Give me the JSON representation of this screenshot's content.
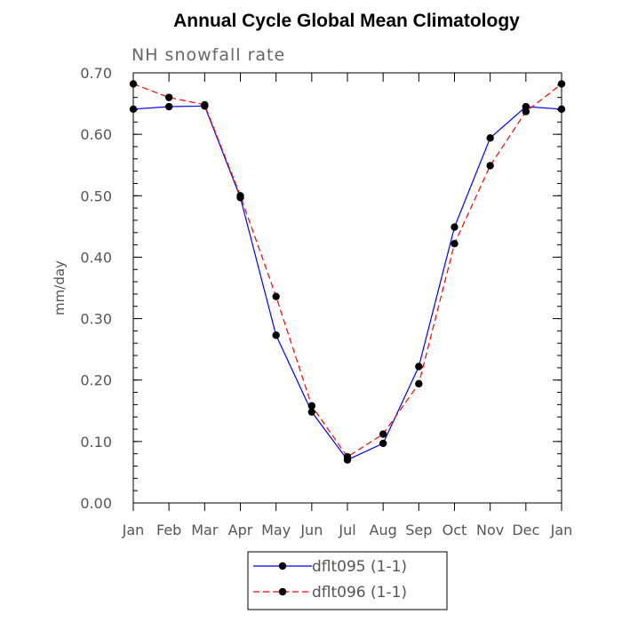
{
  "chart_data": {
    "type": "line",
    "title": "Annual Cycle Global Mean Climatology",
    "subtitle": "NH snowfall rate",
    "xlabel": "",
    "ylabel": "mm/day",
    "categories": [
      "Jan",
      "Feb",
      "Mar",
      "Apr",
      "May",
      "Jun",
      "Jul",
      "Aug",
      "Sep",
      "Oct",
      "Nov",
      "Dec",
      "Jan"
    ],
    "ylim": [
      0.0,
      0.7
    ],
    "yticks": [
      "0.00",
      "0.10",
      "0.20",
      "0.30",
      "0.40",
      "0.50",
      "0.60",
      "0.70"
    ],
    "grid": false,
    "legend_position": "bottom-center",
    "series": [
      {
        "name": "dflt095 (1-1)",
        "color": "#0000ff",
        "dash": "solid",
        "marker": "filled-circle",
        "values": [
          0.641,
          0.645,
          0.646,
          0.497,
          0.273,
          0.148,
          0.07,
          0.097,
          0.222,
          0.449,
          0.594,
          0.645,
          0.641
        ]
      },
      {
        "name": "dflt096 (1-1)",
        "color": "#ff0000",
        "dash": "dashed",
        "marker": "filled-circle",
        "values": [
          0.682,
          0.66,
          0.648,
          0.5,
          0.336,
          0.158,
          0.075,
          0.112,
          0.194,
          0.422,
          0.549,
          0.637,
          0.682
        ]
      }
    ]
  }
}
